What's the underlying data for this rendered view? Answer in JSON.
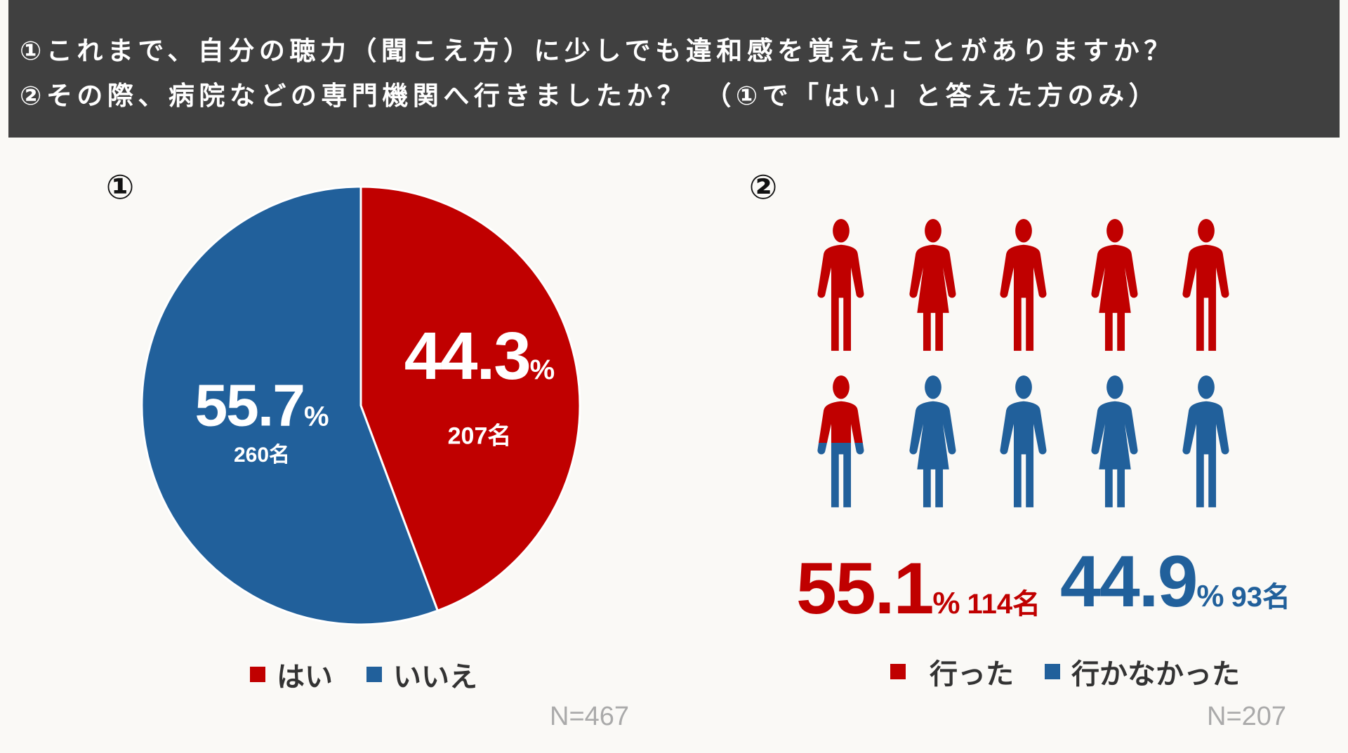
{
  "header": {
    "line1": "①これまで、自分の聴力（聞こえ方）に少しでも違和感を覚えたことがありますか？",
    "line2": "②その際、病院などの専門機関へ行きましたか？　（①で「はい」と答えた方のみ）"
  },
  "colors": {
    "red": "#c00000",
    "blue": "#21609b",
    "header_bg": "#404040"
  },
  "chart_data": [
    {
      "type": "pie",
      "marker": "①",
      "slices": [
        {
          "label": "はい",
          "percent": 44.3,
          "percent_text": "44.3",
          "count_text": "207名",
          "color": "#c00000"
        },
        {
          "label": "いいえ",
          "percent": 55.7,
          "percent_text": "55.7",
          "count_text": "260名",
          "color": "#21609b"
        }
      ],
      "pct_sign": "%",
      "n_label": "N=467"
    },
    {
      "type": "pictogram",
      "marker": "②",
      "icons_total": 10,
      "series": [
        {
          "label": "行った",
          "percent": 55.1,
          "percent_text": "55.1",
          "count_text": "114名",
          "color": "#c00000"
        },
        {
          "label": "行かなかった",
          "percent": 44.9,
          "percent_text": "44.9",
          "count_text": "93名",
          "color": "#21609b"
        }
      ],
      "pct_sign": "%",
      "n_label": "N=207"
    }
  ]
}
